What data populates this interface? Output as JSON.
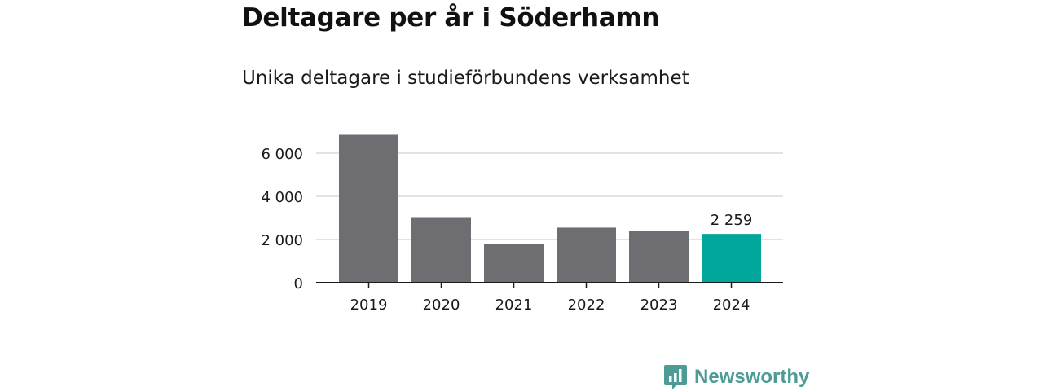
{
  "title": "Deltagare per år i Söderhamn",
  "subtitle": "Unika deltagare i studieförbundens verksamhet",
  "brand": {
    "name": "Newsworthy",
    "logo_icon": "newsworthy-chart-logo-icon",
    "color": "#4c9c95"
  },
  "chart_data": {
    "type": "bar",
    "categories": [
      "2019",
      "2020",
      "2021",
      "2022",
      "2023",
      "2024"
    ],
    "values": [
      6850,
      3000,
      1800,
      2550,
      2400,
      2259
    ],
    "ylim": [
      0,
      6000
    ],
    "yticks": [
      0,
      2000,
      4000,
      6000
    ],
    "ytick_labels": [
      "0",
      "2 000",
      "4 000",
      "6 000"
    ],
    "grid": true,
    "data_labels": [
      {
        "category": "2024",
        "text": "2 259"
      }
    ],
    "colors": {
      "default": "#6e6d72",
      "highlight": "#00a69c",
      "grid": "#d9d9d9",
      "axis": "#1a1a1a"
    },
    "highlight_category": "2024"
  }
}
